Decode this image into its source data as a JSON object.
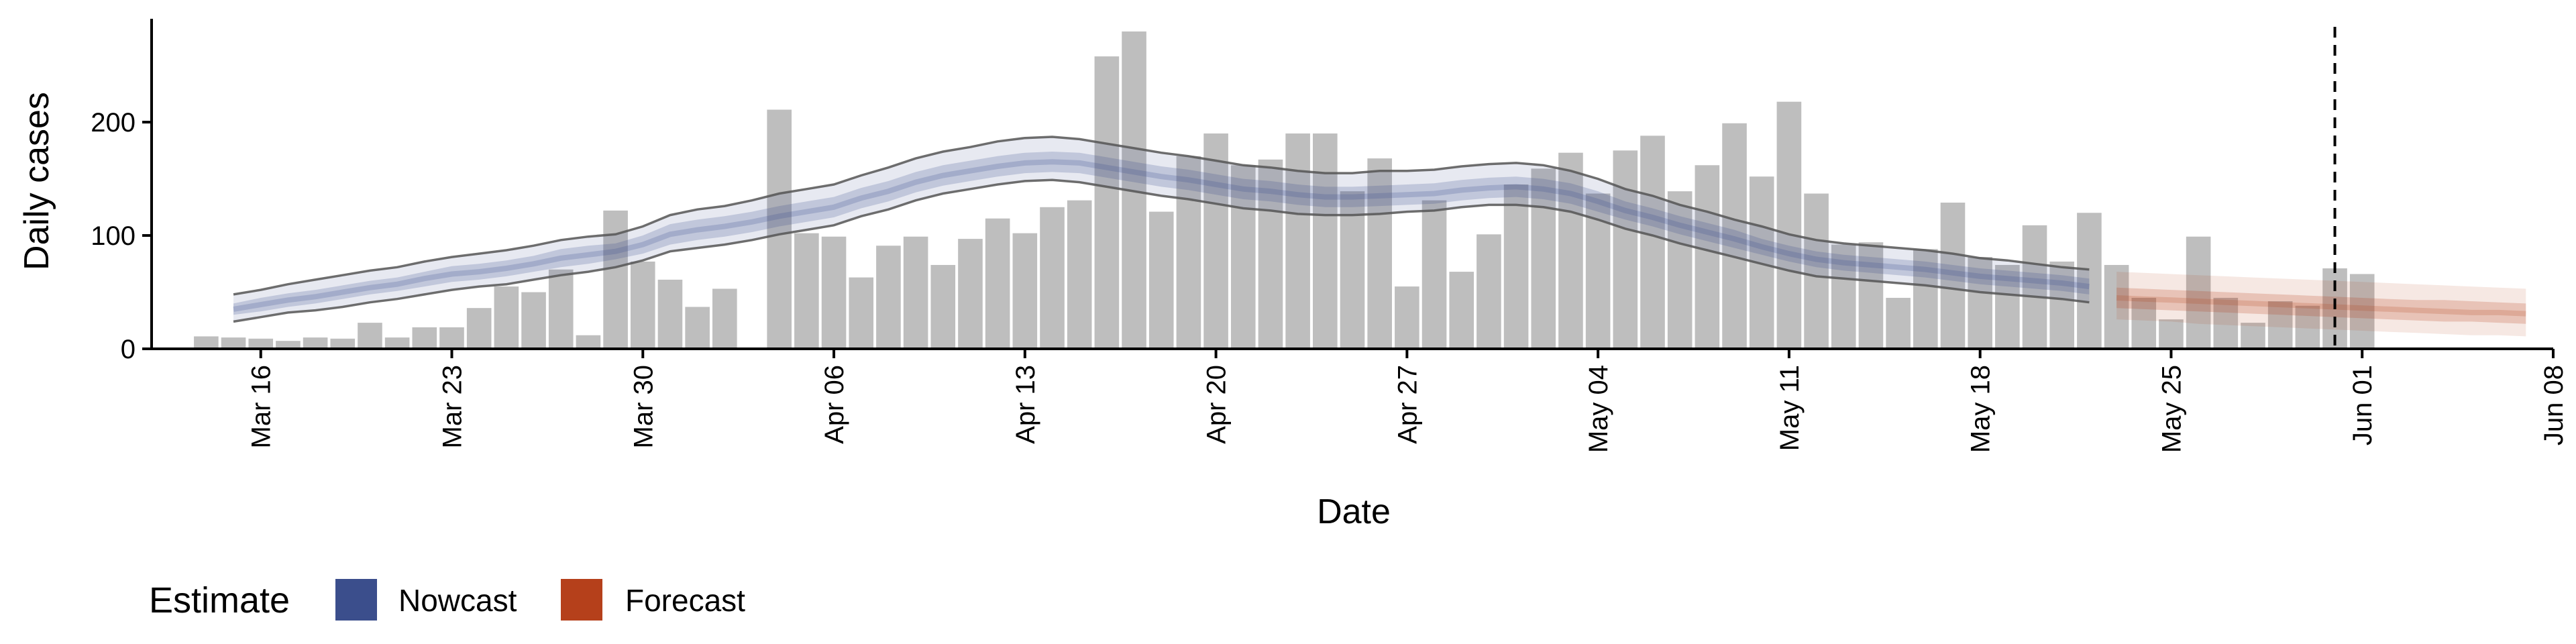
{
  "chart_data": {
    "type": "bar",
    "xlabel": "Date",
    "ylabel": "Daily cases",
    "ylim": [
      0,
      290
    ],
    "xlim": [
      "2020-03-12",
      "2020-06-08"
    ],
    "yticks": [
      0,
      100,
      200
    ],
    "xticks": [
      {
        "date": "2020-03-16",
        "label": "Mar 16"
      },
      {
        "date": "2020-03-23",
        "label": "Mar 23"
      },
      {
        "date": "2020-03-30",
        "label": "Mar 30"
      },
      {
        "date": "2020-04-06",
        "label": "Apr 06"
      },
      {
        "date": "2020-04-13",
        "label": "Apr 13"
      },
      {
        "date": "2020-04-20",
        "label": "Apr 20"
      },
      {
        "date": "2020-04-27",
        "label": "Apr 27"
      },
      {
        "date": "2020-05-04",
        "label": "May 04"
      },
      {
        "date": "2020-05-11",
        "label": "May 11"
      },
      {
        "date": "2020-05-18",
        "label": "May 18"
      },
      {
        "date": "2020-05-25",
        "label": "May 25"
      },
      {
        "date": "2020-06-01",
        "label": "Jun 01"
      },
      {
        "date": "2020-06-08",
        "label": "Jun 08"
      }
    ],
    "bars": {
      "start_date": "2020-03-14",
      "color": "#bebebe",
      "values": [
        11,
        10,
        9,
        7,
        10,
        9,
        23,
        10,
        19,
        19,
        36,
        55,
        50,
        70,
        12,
        122,
        77,
        61,
        37,
        53,
        null,
        211,
        102,
        99,
        63,
        91,
        99,
        74,
        97,
        115,
        102,
        125,
        131,
        258,
        280,
        121,
        170,
        190,
        162,
        167,
        190,
        190,
        139,
        168,
        55,
        131,
        68,
        101,
        145,
        159,
        173,
        137,
        175,
        188,
        139,
        162,
        199,
        152,
        218,
        137,
        92,
        94,
        45,
        88,
        129,
        81,
        74,
        109,
        77,
        120,
        74,
        45,
        26,
        99,
        45,
        23,
        42,
        38,
        71,
        66
      ]
    },
    "nowcast": {
      "name": "Nowcast",
      "color": "#3b4e8c",
      "start_date": "2020-03-15",
      "median": [
        35,
        39,
        43,
        46,
        50,
        54,
        57,
        62,
        66,
        68,
        71,
        75,
        80,
        83,
        86,
        92,
        101,
        105,
        108,
        112,
        117,
        121,
        125,
        133,
        139,
        147,
        153,
        157,
        161,
        164,
        165,
        164,
        160,
        156,
        152,
        149,
        145,
        141,
        139,
        136,
        134,
        134,
        135,
        136,
        137,
        140,
        142,
        143,
        141,
        137,
        130,
        122,
        116,
        109,
        103,
        97,
        90,
        84,
        79,
        76,
        74,
        72,
        70,
        67,
        64,
        62,
        60,
        58,
        55
      ],
      "inner_lower": [
        30,
        33,
        37,
        40,
        44,
        48,
        51,
        55,
        59,
        61,
        64,
        68,
        72,
        75,
        79,
        84,
        92,
        96,
        99,
        103,
        108,
        112,
        116,
        124,
        130,
        138,
        144,
        148,
        152,
        155,
        156,
        155,
        151,
        147,
        143,
        140,
        136,
        132,
        130,
        127,
        125,
        125,
        126,
        127,
        128,
        131,
        133,
        134,
        132,
        128,
        121,
        114,
        108,
        101,
        95,
        89,
        83,
        77,
        72,
        69,
        67,
        65,
        63,
        60,
        57,
        55,
        53,
        51,
        48
      ],
      "inner_upper": [
        40,
        45,
        49,
        52,
        56,
        60,
        63,
        68,
        73,
        75,
        78,
        82,
        88,
        91,
        93,
        100,
        110,
        114,
        117,
        121,
        126,
        130,
        134,
        142,
        148,
        156,
        162,
        166,
        170,
        173,
        174,
        173,
        169,
        165,
        161,
        158,
        154,
        150,
        148,
        145,
        143,
        143,
        144,
        145,
        146,
        149,
        151,
        152,
        150,
        146,
        139,
        130,
        124,
        117,
        111,
        105,
        97,
        91,
        86,
        83,
        81,
        79,
        77,
        74,
        71,
        69,
        67,
        65,
        62
      ],
      "outer_lower": [
        24,
        28,
        32,
        34,
        37,
        41,
        44,
        48,
        52,
        55,
        57,
        61,
        65,
        68,
        72,
        78,
        86,
        89,
        92,
        96,
        101,
        105,
        109,
        117,
        123,
        131,
        137,
        141,
        145,
        148,
        149,
        147,
        143,
        139,
        135,
        132,
        128,
        124,
        122,
        119,
        118,
        118,
        119,
        121,
        122,
        125,
        127,
        127,
        125,
        121,
        114,
        106,
        100,
        93,
        87,
        81,
        75,
        69,
        64,
        62,
        60,
        58,
        56,
        53,
        50,
        48,
        46,
        44,
        41
      ],
      "outer_upper": [
        48,
        52,
        57,
        61,
        65,
        69,
        72,
        77,
        81,
        84,
        87,
        91,
        96,
        99,
        101,
        108,
        118,
        123,
        126,
        131,
        137,
        141,
        145,
        153,
        160,
        168,
        174,
        178,
        183,
        186,
        187,
        185,
        181,
        177,
        173,
        170,
        166,
        162,
        160,
        157,
        155,
        155,
        157,
        157,
        158,
        161,
        163,
        164,
        162,
        157,
        150,
        141,
        135,
        127,
        121,
        114,
        108,
        101,
        96,
        93,
        91,
        89,
        87,
        84,
        80,
        78,
        75,
        72,
        70
      ]
    },
    "forecast": {
      "name": "Forecast",
      "color": "#b5401b",
      "start_date": "2020-05-23",
      "median": [
        45,
        44,
        43,
        42,
        41,
        40,
        39,
        38,
        37,
        36,
        35,
        34,
        33,
        32,
        32,
        31
      ],
      "inner_lower": [
        36,
        35,
        34,
        33,
        32,
        31,
        30,
        29,
        28,
        27,
        26,
        25,
        24,
        24,
        23,
        22
      ],
      "inner_upper": [
        54,
        53,
        52,
        51,
        50,
        49,
        48,
        47,
        46,
        45,
        44,
        43,
        43,
        42,
        41,
        40
      ],
      "outer_lower": [
        26,
        25,
        24,
        22,
        21,
        20,
        19,
        18,
        17,
        16,
        15,
        14,
        13,
        12,
        12,
        11
      ],
      "outer_upper": [
        68,
        67,
        66,
        65,
        64,
        63,
        62,
        61,
        60,
        59,
        58,
        57,
        56,
        55,
        54,
        53
      ]
    },
    "vline": {
      "date": "2020-05-31",
      "style": "dashed",
      "color": "#000000"
    },
    "legend": {
      "title": "Estimate",
      "position": "bottom-left",
      "entries": [
        {
          "label": "Nowcast",
          "color": "#3b4e8c"
        },
        {
          "label": "Forecast",
          "color": "#b5401b"
        }
      ]
    },
    "grid": false
  }
}
